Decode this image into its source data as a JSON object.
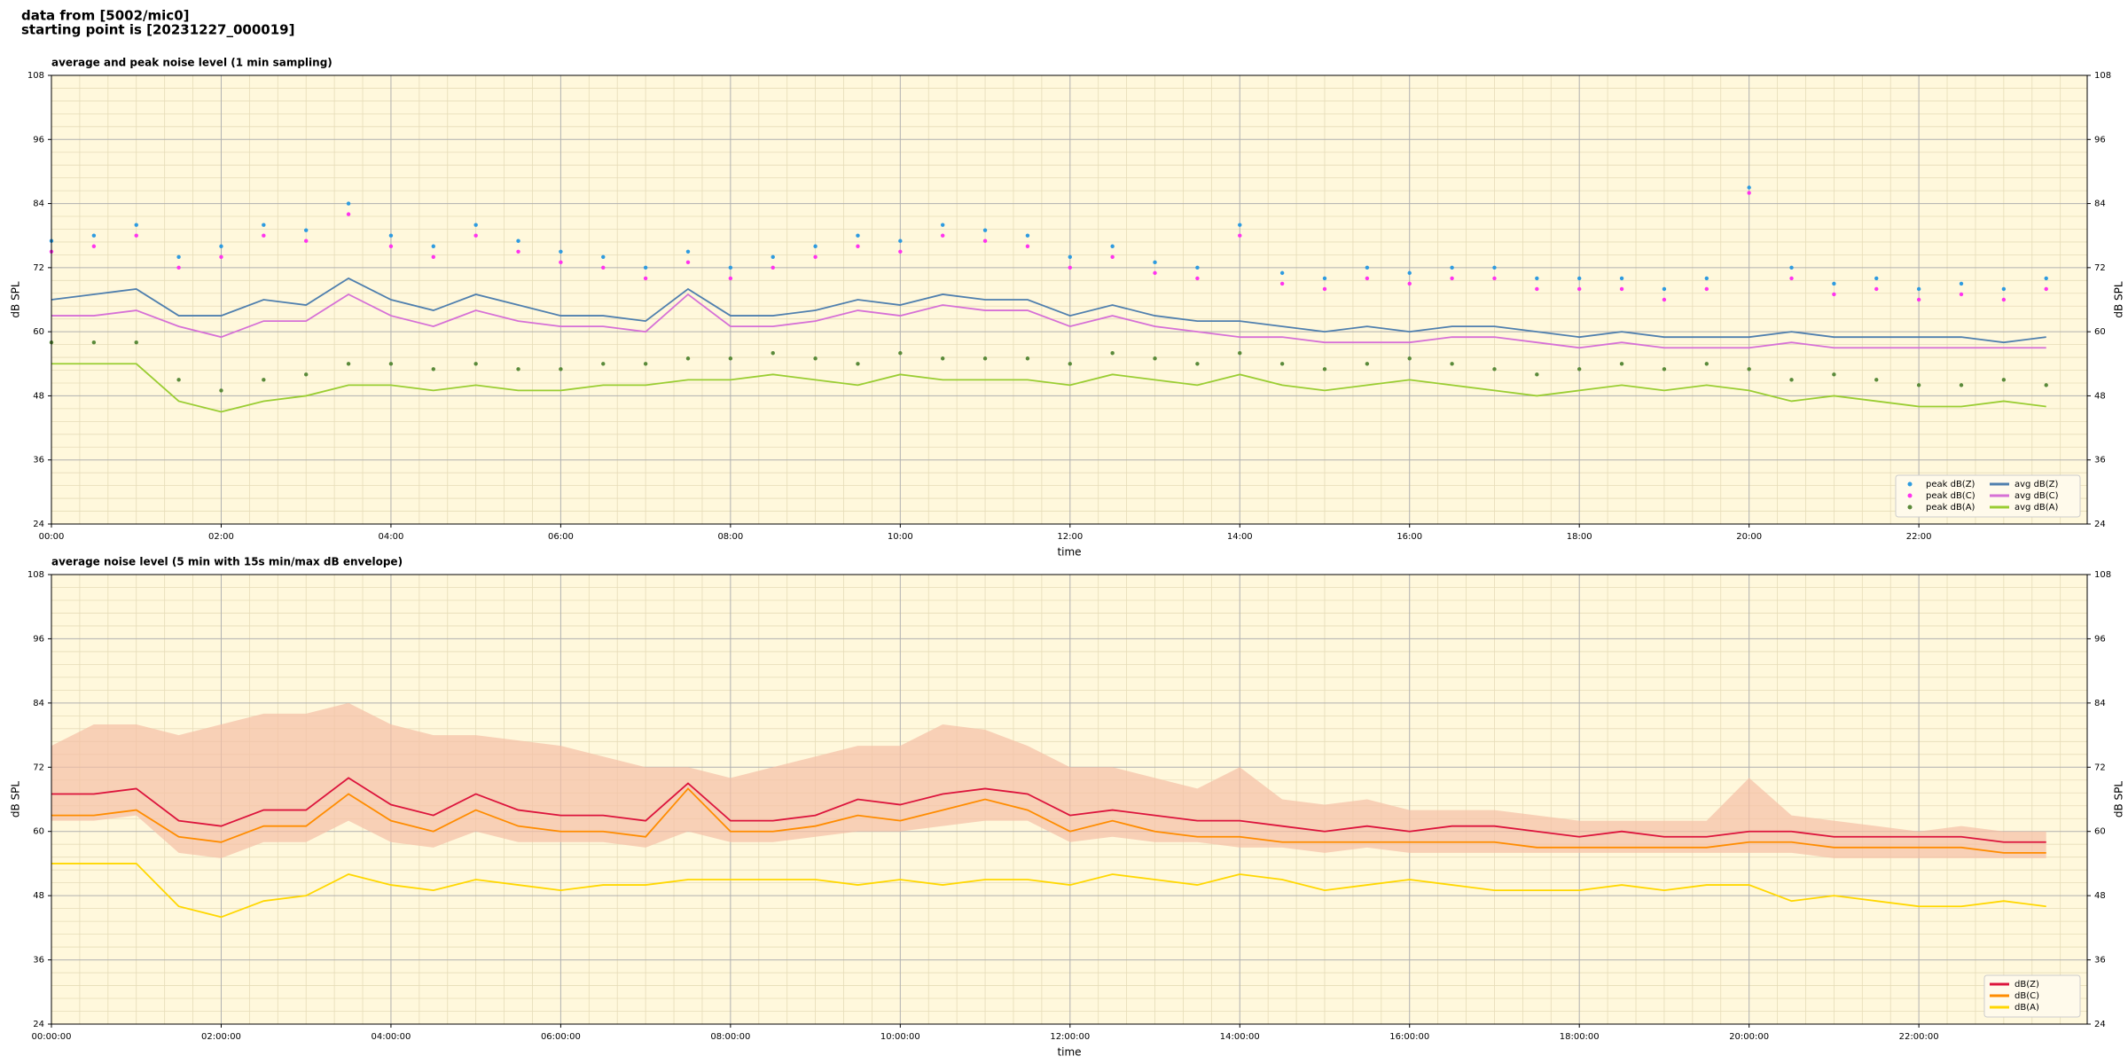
{
  "header": {
    "lines": [
      "data from [5002/mic0]",
      "starting point is [20231227_000019]"
    ]
  },
  "chart_data": [
    {
      "type": "line",
      "title": "average and peak noise level (1 min sampling)",
      "xlabel": "time",
      "ylabel": "dB SPL",
      "x": [
        "00:00",
        "00:30",
        "01:00",
        "01:30",
        "02:00",
        "02:30",
        "03:00",
        "03:30",
        "04:00",
        "04:30",
        "05:00",
        "05:30",
        "06:00",
        "06:30",
        "07:00",
        "07:30",
        "08:00",
        "08:30",
        "09:00",
        "09:30",
        "10:00",
        "10:30",
        "11:00",
        "11:30",
        "12:00",
        "12:30",
        "13:00",
        "13:30",
        "14:00",
        "14:30",
        "15:00",
        "15:30",
        "16:00",
        "16:30",
        "17:00",
        "17:30",
        "18:00",
        "18:30",
        "19:00",
        "19:30",
        "20:00",
        "20:30",
        "21:00",
        "21:30",
        "22:00",
        "22:30",
        "23:00",
        "23:30"
      ],
      "xlim": [
        "00:00",
        "23:59"
      ],
      "xticks": [
        "00:00",
        "02:00",
        "04:00",
        "06:00",
        "08:00",
        "10:00",
        "12:00",
        "14:00",
        "16:00",
        "18:00",
        "20:00",
        "22:00"
      ],
      "ylim": [
        24,
        108
      ],
      "yticks": [
        24,
        36,
        48,
        60,
        72,
        84,
        96,
        108
      ],
      "grid": true,
      "background": "#fff8dc",
      "legend": "lower right",
      "legend_columns": 2,
      "series": [
        {
          "name": "peak dB(Z)",
          "mode": "markers",
          "color": "#2e9be0",
          "values": [
            77,
            78,
            80,
            74,
            76,
            80,
            79,
            84,
            78,
            76,
            80,
            77,
            75,
            74,
            72,
            75,
            72,
            74,
            76,
            78,
            77,
            80,
            79,
            78,
            74,
            76,
            73,
            72,
            80,
            71,
            70,
            72,
            71,
            72,
            72,
            70,
            70,
            70,
            68,
            70,
            87,
            72,
            69,
            70,
            68,
            69,
            68,
            70
          ]
        },
        {
          "name": "peak dB(C)",
          "mode": "markers",
          "color": "#ff33ee",
          "values": [
            75,
            76,
            78,
            72,
            74,
            78,
            77,
            82,
            76,
            74,
            78,
            75,
            73,
            72,
            70,
            73,
            70,
            72,
            74,
            76,
            75,
            78,
            77,
            76,
            72,
            74,
            71,
            70,
            78,
            69,
            68,
            70,
            69,
            70,
            70,
            68,
            68,
            68,
            66,
            68,
            86,
            70,
            67,
            68,
            66,
            67,
            66,
            68
          ]
        },
        {
          "name": "peak dB(A)",
          "mode": "markers",
          "color": "#5a8a3a",
          "values": [
            58,
            58,
            58,
            51,
            49,
            51,
            52,
            54,
            54,
            53,
            54,
            53,
            53,
            54,
            54,
            55,
            55,
            56,
            55,
            54,
            56,
            55,
            55,
            55,
            54,
            56,
            55,
            54,
            56,
            54,
            53,
            54,
            55,
            54,
            53,
            52,
            53,
            54,
            53,
            54,
            53,
            51,
            52,
            51,
            50,
            50,
            51,
            50
          ]
        },
        {
          "name": "avg dB(Z)",
          "mode": "line",
          "color": "#4f7fae",
          "values": [
            66,
            67,
            68,
            63,
            63,
            66,
            65,
            70,
            66,
            64,
            67,
            65,
            63,
            63,
            62,
            68,
            63,
            63,
            64,
            66,
            65,
            67,
            66,
            66,
            63,
            65,
            63,
            62,
            62,
            61,
            60,
            61,
            60,
            61,
            61,
            60,
            59,
            60,
            59,
            59,
            59,
            60,
            59,
            59,
            59,
            59,
            58,
            59
          ]
        },
        {
          "name": "avg dB(C)",
          "mode": "line",
          "color": "#d670d6",
          "values": [
            63,
            63,
            64,
            61,
            59,
            62,
            62,
            67,
            63,
            61,
            64,
            62,
            61,
            61,
            60,
            67,
            61,
            61,
            62,
            64,
            63,
            65,
            64,
            64,
            61,
            63,
            61,
            60,
            59,
            59,
            58,
            58,
            58,
            59,
            59,
            58,
            57,
            58,
            57,
            57,
            57,
            58,
            57,
            57,
            57,
            57,
            57,
            57
          ]
        },
        {
          "name": "avg dB(A)",
          "mode": "line",
          "color": "#9acd32",
          "values": [
            54,
            54,
            54,
            47,
            45,
            47,
            48,
            50,
            50,
            49,
            50,
            49,
            49,
            50,
            50,
            51,
            51,
            52,
            51,
            50,
            52,
            51,
            51,
            51,
            50,
            52,
            51,
            50,
            52,
            50,
            49,
            50,
            51,
            50,
            49,
            48,
            49,
            50,
            49,
            50,
            49,
            47,
            48,
            47,
            46,
            46,
            47,
            46
          ]
        }
      ]
    },
    {
      "type": "line",
      "title": "average noise level (5 min with 15s min/max dB envelope)",
      "xlabel": "time",
      "ylabel": "dB SPL",
      "x": [
        "00:00:00",
        "00:30:00",
        "01:00:00",
        "01:30:00",
        "02:00:00",
        "02:30:00",
        "03:00:00",
        "03:30:00",
        "04:00:00",
        "04:30:00",
        "05:00:00",
        "05:30:00",
        "06:00:00",
        "06:30:00",
        "07:00:00",
        "07:30:00",
        "08:00:00",
        "08:30:00",
        "09:00:00",
        "09:30:00",
        "10:00:00",
        "10:30:00",
        "11:00:00",
        "11:30:00",
        "12:00:00",
        "12:30:00",
        "13:00:00",
        "13:30:00",
        "14:00:00",
        "14:30:00",
        "15:00:00",
        "15:30:00",
        "16:00:00",
        "16:30:00",
        "17:00:00",
        "17:30:00",
        "18:00:00",
        "18:30:00",
        "19:00:00",
        "19:30:00",
        "20:00:00",
        "20:30:00",
        "21:00:00",
        "21:30:00",
        "22:00:00",
        "22:30:00",
        "23:00:00",
        "23:30:00"
      ],
      "xlim": [
        "00:00:00",
        "23:59:00"
      ],
      "xticks": [
        "00:00:00",
        "02:00:00",
        "04:00:00",
        "06:00:00",
        "08:00:00",
        "10:00:00",
        "12:00:00",
        "14:00:00",
        "16:00:00",
        "18:00:00",
        "20:00:00",
        "22:00:00"
      ],
      "ylim": [
        24,
        108
      ],
      "yticks": [
        24,
        36,
        48,
        60,
        72,
        84,
        96,
        108
      ],
      "grid": true,
      "background": "#fff8dc",
      "legend": "lower right",
      "legend_columns": 1,
      "envelope": {
        "color": "#f5bfa5",
        "upper": [
          76,
          80,
          80,
          78,
          80,
          82,
          82,
          84,
          80,
          78,
          78,
          77,
          76,
          74,
          72,
          72,
          70,
          72,
          74,
          76,
          76,
          80,
          79,
          76,
          72,
          72,
          70,
          68,
          72,
          66,
          65,
          66,
          64,
          64,
          64,
          63,
          62,
          62,
          62,
          62,
          70,
          63,
          62,
          61,
          60,
          61,
          60,
          60
        ],
        "lower": [
          62,
          62,
          63,
          56,
          55,
          58,
          58,
          62,
          58,
          57,
          60,
          58,
          58,
          58,
          57,
          60,
          58,
          58,
          59,
          60,
          60,
          61,
          62,
          62,
          58,
          59,
          58,
          58,
          57,
          57,
          56,
          57,
          56,
          56,
          56,
          56,
          56,
          56,
          56,
          56,
          56,
          56,
          55,
          55,
          55,
          55,
          55,
          55
        ]
      },
      "series": [
        {
          "name": "dB(Z)",
          "mode": "line",
          "color": "#dc143c",
          "values": [
            67,
            67,
            68,
            62,
            61,
            64,
            64,
            70,
            65,
            63,
            67,
            64,
            63,
            63,
            62,
            69,
            62,
            62,
            63,
            66,
            65,
            67,
            68,
            67,
            63,
            64,
            63,
            62,
            62,
            61,
            60,
            61,
            60,
            61,
            61,
            60,
            59,
            60,
            59,
            59,
            60,
            60,
            59,
            59,
            59,
            59,
            58,
            58
          ]
        },
        {
          "name": "dB(C)",
          "mode": "line",
          "color": "#ff8c00",
          "values": [
            63,
            63,
            64,
            59,
            58,
            61,
            61,
            67,
            62,
            60,
            64,
            61,
            60,
            60,
            59,
            68,
            60,
            60,
            61,
            63,
            62,
            64,
            66,
            64,
            60,
            62,
            60,
            59,
            59,
            58,
            58,
            58,
            58,
            58,
            58,
            57,
            57,
            57,
            57,
            57,
            58,
            58,
            57,
            57,
            57,
            57,
            56,
            56
          ]
        },
        {
          "name": "dB(A)",
          "mode": "line",
          "color": "#ffd700",
          "values": [
            54,
            54,
            54,
            46,
            44,
            47,
            48,
            52,
            50,
            49,
            51,
            50,
            49,
            50,
            50,
            51,
            51,
            51,
            51,
            50,
            51,
            50,
            51,
            51,
            50,
            52,
            51,
            50,
            52,
            51,
            49,
            50,
            51,
            50,
            49,
            49,
            49,
            50,
            49,
            50,
            50,
            47,
            48,
            47,
            46,
            46,
            47,
            46
          ]
        }
      ]
    }
  ]
}
